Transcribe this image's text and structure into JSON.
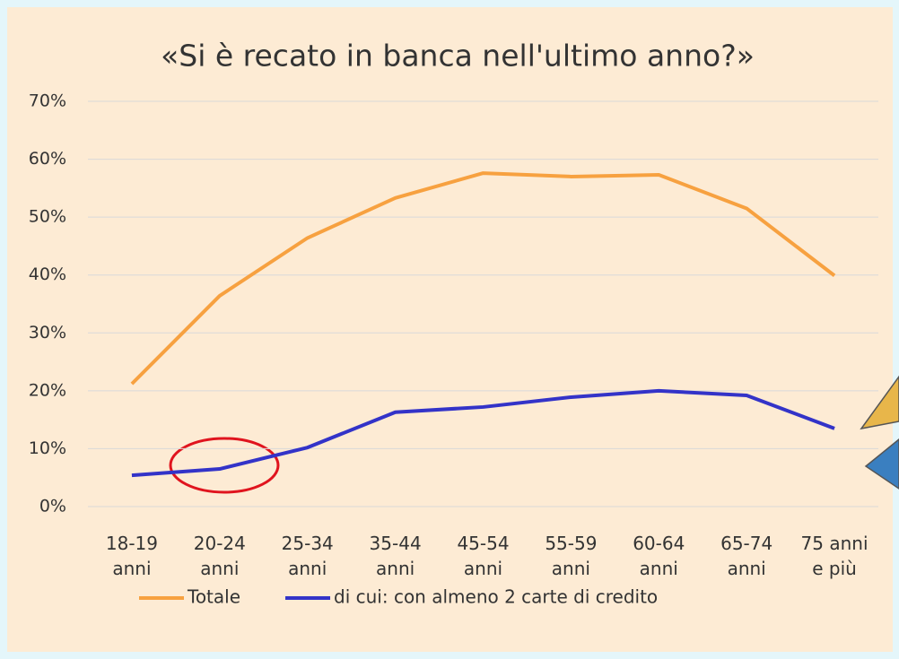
{
  "chart_data": {
    "type": "line",
    "title": "«Si è recato in banca nell'ultimo anno?»",
    "categories": [
      "18-19 anni",
      "20-24 anni",
      "25-34 anni",
      "35-44 anni",
      "45-54 anni",
      "55-59 anni",
      "60-64 anni",
      "65-74 anni",
      "75 anni e più"
    ],
    "series": [
      {
        "name": "Totale",
        "color": "#f7a140",
        "values": [
          21.2,
          36.4,
          46.4,
          53.3,
          57.6,
          57.0,
          57.3,
          51.5,
          39.9
        ]
      },
      {
        "name": "di cui: con almeno 2 carte di credito",
        "color": "#3333c8",
        "values": [
          5.4,
          6.5,
          10.2,
          16.3,
          17.2,
          18.9,
          20.0,
          19.2,
          13.5
        ]
      }
    ],
    "ylim": [
      0,
      70
    ],
    "yticks": [
      {
        "value": 0,
        "label": "0%"
      },
      {
        "value": 10,
        "label": "10%"
      },
      {
        "value": 20,
        "label": "20%"
      },
      {
        "value": 30,
        "label": "30%"
      },
      {
        "value": 40,
        "label": "40%"
      },
      {
        "value": 50,
        "label": "50%"
      },
      {
        "value": 60,
        "label": "60%"
      },
      {
        "value": 70,
        "label": "70%"
      }
    ],
    "grid": true,
    "legend": "bottom"
  }
}
